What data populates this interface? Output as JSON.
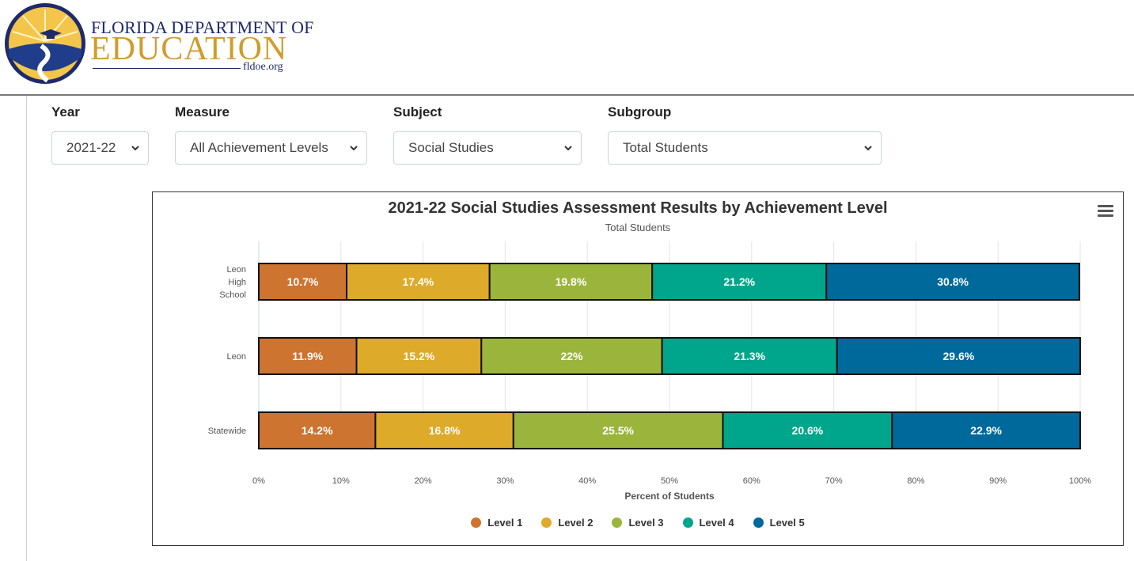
{
  "header": {
    "logo_line1": "FLORIDA DEPARTMENT OF",
    "logo_line2": "EDUCATION",
    "logo_line3": "fldoe.org"
  },
  "filters": {
    "year": {
      "label": "Year",
      "value": "2021-22"
    },
    "measure": {
      "label": "Measure",
      "value": "All Achievement Levels"
    },
    "subject": {
      "label": "Subject",
      "value": "Social Studies"
    },
    "subgroup": {
      "label": "Subgroup",
      "value": "Total Students"
    }
  },
  "chart_data": {
    "type": "bar",
    "orientation": "horizontal",
    "stacked": true,
    "title": "2021-22 Social Studies Assessment Results by Achievement Level",
    "subtitle": "Total Students",
    "xlabel": "Percent of Students",
    "ylabel": "",
    "xlim": [
      0,
      100
    ],
    "xticks": [
      "0%",
      "10%",
      "20%",
      "30%",
      "40%",
      "50%",
      "60%",
      "70%",
      "80%",
      "90%",
      "100%"
    ],
    "categories": [
      "Leon High School",
      "Leon",
      "Statewide"
    ],
    "category_labels": [
      [
        "Leon",
        "High",
        "School"
      ],
      [
        "Leon"
      ],
      [
        "Statewide"
      ]
    ],
    "series": [
      {
        "name": "Level 1",
        "color": "#cd7430",
        "values": [
          10.7,
          11.9,
          14.2
        ],
        "labels": [
          "10.7%",
          "11.9%",
          "14.2%"
        ]
      },
      {
        "name": "Level 2",
        "color": "#deaa2a",
        "values": [
          17.4,
          15.2,
          16.8
        ],
        "labels": [
          "17.4%",
          "15.2%",
          "16.8%"
        ]
      },
      {
        "name": "Level 3",
        "color": "#9bb53c",
        "values": [
          19.8,
          22,
          25.5
        ],
        "labels": [
          "19.8%",
          "22%",
          "25.5%"
        ]
      },
      {
        "name": "Level 4",
        "color": "#00a68b",
        "values": [
          21.2,
          21.3,
          20.6
        ],
        "labels": [
          "21.2%",
          "21.3%",
          "20.6%"
        ]
      },
      {
        "name": "Level 5",
        "color": "#00699b",
        "values": [
          30.8,
          29.6,
          22.9
        ],
        "labels": [
          "30.8%",
          "29.6%",
          "22.9%"
        ]
      }
    ],
    "grid": true,
    "legend_position": "bottom"
  }
}
